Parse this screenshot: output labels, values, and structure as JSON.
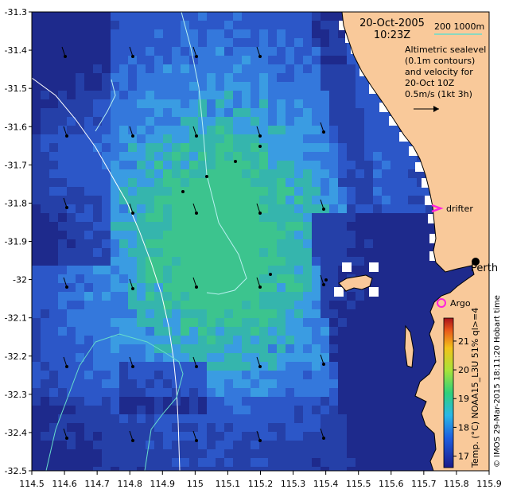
{
  "map": {
    "title_date": "20-Oct-2005",
    "title_time": "10:23Z",
    "depth_legend": "200  1000m",
    "info_lines": [
      "Altimetric sealevel",
      "(0.1m contours)",
      "and velocity for",
      "20-Oct 10Z",
      "0.5m/s (1kt 3h)"
    ],
    "labels": {
      "drifter": "drifter",
      "perth": "Perth",
      "argo": "Argo"
    },
    "colorbar": {
      "title": "Temp. (°C) NOAA15_L3U 51% ql>=4",
      "min": 16.6,
      "max": 21.8,
      "ticks": [
        "17",
        "18",
        "19",
        "20",
        "21"
      ]
    },
    "credit": "© IMOS 29-Mar-2015 18:11:20 Hobart time",
    "x_ticks": [
      "114.5",
      "114.6",
      "114.7",
      "114.8",
      "114.9",
      "115",
      "115.1",
      "115.2",
      "115.3",
      "115.4",
      "115.5",
      "115.6",
      "115.7",
      "115.8",
      "115.9"
    ],
    "y_ticks": [
      "-31.3",
      "-31.4",
      "-31.5",
      "-31.6",
      "-31.7",
      "-31.8",
      "-31.9",
      "-32",
      "-32.1",
      "-32.2",
      "-32.3",
      "-32.4",
      "-32.5"
    ],
    "extent": {
      "lon": [
        114.5,
        115.9
      ],
      "lat": [
        -32.5,
        -31.3
      ]
    },
    "colors": {
      "land": "#f9c99a",
      "deep_blue": "#1f2f9f",
      "mid_blue": "#3060d8",
      "light_blue": "#3a8ee6",
      "cyan_green": "#34b8a8",
      "green": "#40c38a",
      "drifter": "#ff22dd",
      "argo": "#ff22dd",
      "contour": "#b8f0f0",
      "depth_line": "#66ddcc"
    }
  }
}
